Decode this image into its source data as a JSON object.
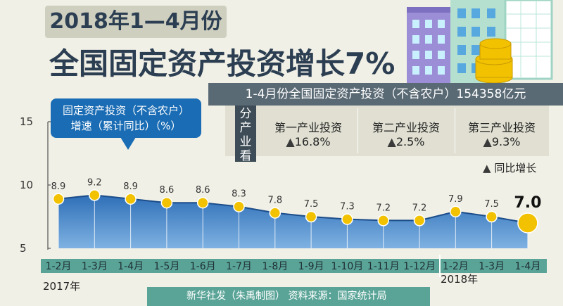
{
  "header": {
    "title_line1": "2018年1—4月份",
    "title_line2": "全国固定资产投资增长7%"
  },
  "summary": {
    "total_text": "1-4月份全国固定资产投资（不含农户）154358亿元",
    "category_label": "分产业看",
    "industries": [
      {
        "name": "第一产业投资",
        "value": "16.8%"
      },
      {
        "name": "第二产业投资",
        "value": "2.5%"
      },
      {
        "name": "第三产业投资",
        "value": "9.3%"
      }
    ],
    "legend": "同比增长",
    "triangle": "▲"
  },
  "colors": {
    "area_fill": "#2f6fb8",
    "area_fill_light": "#7fb2e2",
    "line": "#1c4d8a",
    "dot": "#f2c200",
    "title": "#2c3e52",
    "footer_bg": "#5aa497",
    "bubble_bg": "#1a6cb4"
  },
  "chart_data": {
    "type": "area",
    "title": "固定资产投资（不含农户）\n增速（累计同比）（%）",
    "title_lines": [
      "固定资产投资（不含农户）",
      "增速（累计同比）（%）"
    ],
    "categories": [
      "1-2月",
      "1-3月",
      "1-4月",
      "1-5月",
      "1-6月",
      "1-7月",
      "1-8月",
      "1-9月",
      "1-10月",
      "1-11月",
      "1-12月",
      "1-2月",
      "1-3月",
      "1-4月"
    ],
    "values": [
      8.9,
      9.2,
      8.9,
      8.6,
      8.6,
      8.3,
      7.8,
      7.5,
      7.3,
      7.2,
      7.2,
      7.9,
      7.5,
      7.0
    ],
    "labels": [
      "8.9",
      "9.2",
      "8.9",
      "8.6",
      "8.6",
      "8.3",
      "7.8",
      "7.5",
      "7.3",
      "7.2",
      "7.2",
      "7.9",
      "7.5",
      "7.0"
    ],
    "ylim": [
      5,
      15
    ],
    "yticks": [
      5,
      10,
      15
    ],
    "year_labels": [
      "2017年",
      "2018年"
    ],
    "grid": false
  },
  "footer": {
    "text": "新华社发（朱禹制图） 资料来源：国家统计局"
  }
}
